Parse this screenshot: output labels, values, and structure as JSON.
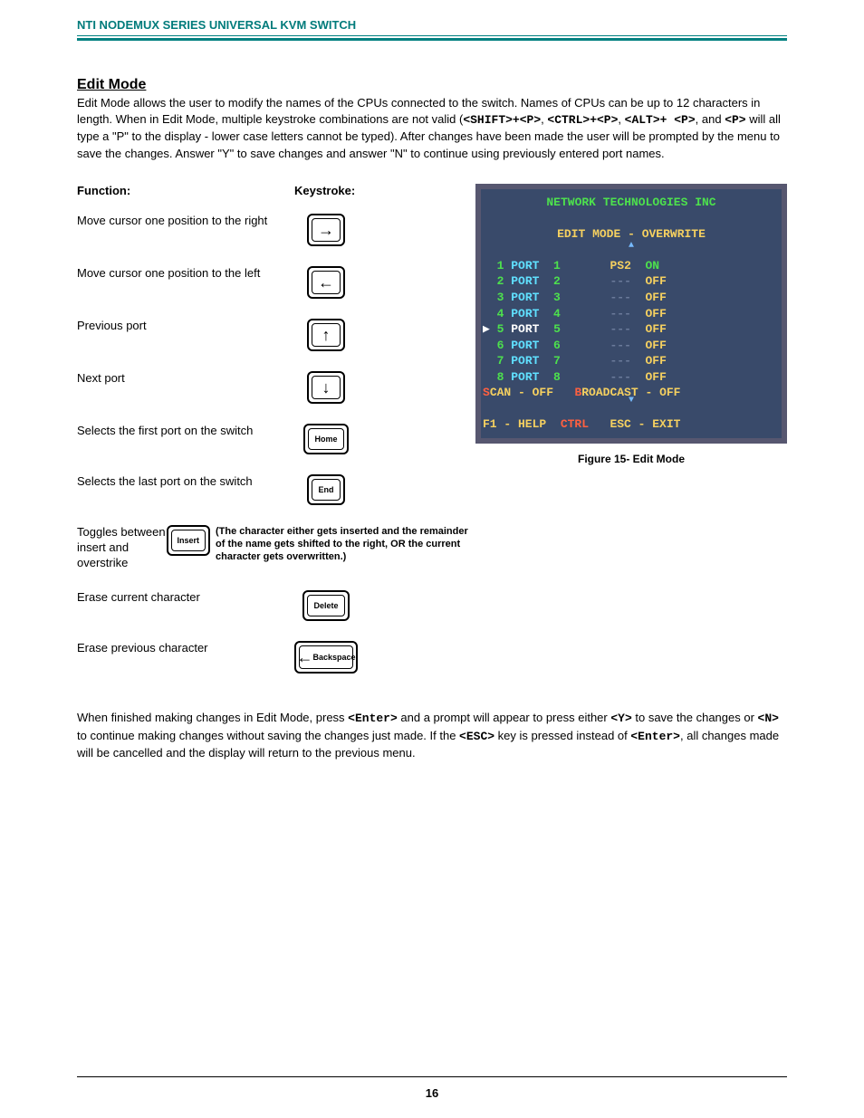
{
  "header": {
    "title": "NTI NODEMUX SERIES UNIVERSAL KVM SWITCH"
  },
  "section": {
    "title": "Edit Mode",
    "intro_before": "Edit Mode allows the user to modify the names of the CPUs connected to the switch.  Names of CPUs can be up to 12 characters in length.  When in Edit Mode, multiple keystroke combinations are not valid (",
    "combo1": "<SHIFT>+<P>",
    "combo2": "<CTRL>+<P>",
    "combo3": "<ALT>+ <P>",
    "combo4": "<P>",
    "intro_after": " will all type a \"P\" to the display - lower case letters cannot be typed). After changes have been made the user will be prompted by the menu to save the changes.  Answer \"Y\" to save changes and answer \"N\" to continue using previously entered port names."
  },
  "columns": {
    "function": "Function:",
    "keystroke": "Keystroke:"
  },
  "rows": [
    {
      "label": "Move cursor one position to the right",
      "key": "→",
      "arrow": true
    },
    {
      "label": "Move cursor one position to the left",
      "key": "←",
      "arrow": true
    },
    {
      "label": "Previous port",
      "key": "↑",
      "arrow": true
    },
    {
      "label": "Next port",
      "key": "↓",
      "arrow": true
    },
    {
      "label": "Selects the first port on the switch",
      "key": "Home"
    },
    {
      "label": "Selects the last port on the switch",
      "key": "End"
    },
    {
      "label": "Toggles between insert and overstrike",
      "key": "Insert",
      "note": "(The character either gets inserted and the remainder of the name gets shifted to the right,   OR   the current character gets overwritten.)"
    },
    {
      "label": "Erase current character",
      "key": "Delete"
    },
    {
      "label": "Erase previous character",
      "key": "Backspace",
      "wide": true,
      "arrowleft": true
    }
  ],
  "screen": {
    "title": "NETWORK TECHNOLOGIES INC",
    "mode": "EDIT MODE - OVERWRITE",
    "ports": [
      {
        "n": "1",
        "name": "PORT  1",
        "dev": "PS2",
        "st": "ON"
      },
      {
        "n": "2",
        "name": "PORT  2",
        "dev": "---",
        "st": "OFF"
      },
      {
        "n": "3",
        "name": "PORT  3",
        "dev": "---",
        "st": "OFF"
      },
      {
        "n": "4",
        "name": "PORT  4",
        "dev": "---",
        "st": "OFF"
      },
      {
        "n": "5",
        "name": "PORT  5",
        "dev": "---",
        "st": "OFF",
        "sel": true
      },
      {
        "n": "6",
        "name": "PORT  6",
        "dev": "---",
        "st": "OFF"
      },
      {
        "n": "7",
        "name": "PORT  7",
        "dev": "---",
        "st": "OFF"
      },
      {
        "n": "8",
        "name": "PORT  8",
        "dev": "---",
        "st": "OFF"
      }
    ],
    "scan": "SCAN - OFF",
    "broadcast": "BROADCAST - OFF",
    "help": "F1 - HELP",
    "ctrl": "CTRL",
    "exit": "ESC - EXIT",
    "caption": "Figure 15- Edit Mode"
  },
  "closing": {
    "p1a": "When finished making changes in Edit Mode, press ",
    "k1": "<Enter>",
    "p1b": " and a prompt will appear to press either ",
    "k2": "<Y>",
    "p1c": " to save the changes or ",
    "k3": "<N>",
    "p1d": " to continue making changes without saving the changes just made.      If the ",
    "k4": "<ESC>",
    "p1e": " key is pressed instead of ",
    "k5": "<Enter>",
    "p1f": ", all changes made will be cancelled and the display will return to the previous menu."
  },
  "page_number": "16"
}
